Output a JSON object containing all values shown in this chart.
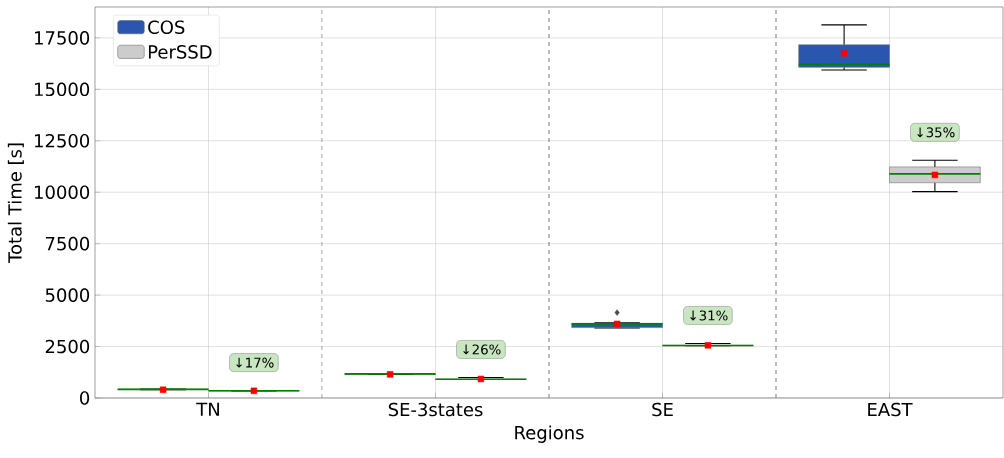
{
  "chart_data": {
    "type": "box",
    "xlabel": "Regions",
    "ylabel": "Total Time [s]",
    "categories": [
      "TN",
      "SE-3states",
      "SE",
      "EAST"
    ],
    "series": [
      {
        "name": "COS",
        "color": "#2a56b0",
        "boxes": [
          {
            "low": 400,
            "q1": 410,
            "median": 420,
            "q3": 430,
            "high": 440,
            "mean": 400
          },
          {
            "low": 1140,
            "q1": 1150,
            "median": 1170,
            "q3": 1180,
            "high": 1190,
            "mean": 1150
          },
          {
            "low": 3400,
            "q1": 3420,
            "median": 3600,
            "q3": 3630,
            "high": 3650,
            "mean": 3600,
            "outliers": [
              4150
            ]
          },
          {
            "low": 15940,
            "q1": 16070,
            "median": 16210,
            "q3": 17160,
            "high": 18130,
            "mean": 16750
          }
        ]
      },
      {
        "name": "PerSSD",
        "color": "#cccccc",
        "boxes": [
          {
            "low": 340,
            "q1": 345,
            "median": 350,
            "q3": 355,
            "high": 360,
            "mean": 350
          },
          {
            "low": 900,
            "q1": 905,
            "median": 910,
            "q3": 915,
            "high": 1000,
            "mean": 925
          },
          {
            "low": 2540,
            "q1": 2545,
            "median": 2550,
            "q3": 2560,
            "high": 2650,
            "mean": 2560
          },
          {
            "low": 10030,
            "q1": 10460,
            "median": 10890,
            "q3": 11230,
            "high": 11550,
            "mean": 10840
          }
        ]
      }
    ],
    "ylim": [
      0,
      19000
    ],
    "yticks": [
      0,
      2500,
      5000,
      7500,
      10000,
      12500,
      15000,
      17500
    ],
    "grid": true,
    "legend": "top left",
    "annotations": [
      "↓17%",
      "↓26%",
      "↓31%",
      "↓35%"
    ]
  }
}
